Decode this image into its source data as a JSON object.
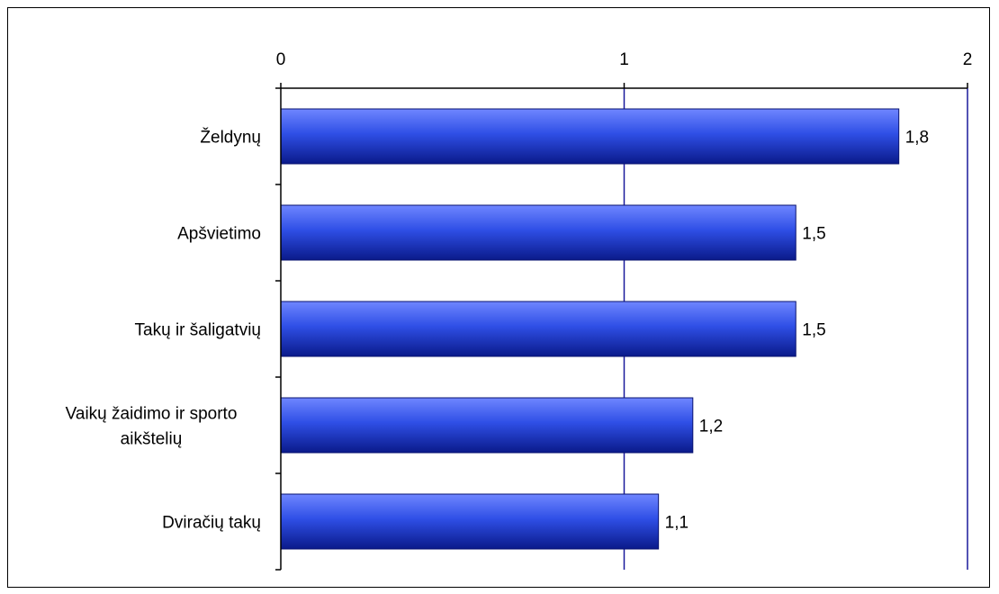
{
  "chart_data": {
    "type": "bar",
    "orientation": "horizontal",
    "categories": [
      [
        "Želdynų"
      ],
      [
        "Apšvietimo"
      ],
      [
        "Takų ir šaligatvių"
      ],
      [
        "Vaikų žaidimo ir sporto",
        "aikštelių"
      ],
      [
        "Dviračių takų"
      ]
    ],
    "values": [
      1.8,
      1.5,
      1.5,
      1.2,
      1.1
    ],
    "data_labels": [
      "1,8",
      "1,5",
      "1,5",
      "1,2",
      "1,1"
    ],
    "x_ticks": [
      "0",
      "1",
      "2"
    ],
    "xlim": [
      0,
      2
    ],
    "x_axis_position": "top",
    "grid": "vertical lines at major ticks",
    "legend": "none",
    "title": "",
    "xlabel": "",
    "ylabel": "",
    "colors": {
      "bar_light": "#6f86ff",
      "bar_mid": "#2f4fe6",
      "bar_dark": "#0a1a8a",
      "gridline": "#1a1a9c",
      "axis": "#000000"
    }
  }
}
